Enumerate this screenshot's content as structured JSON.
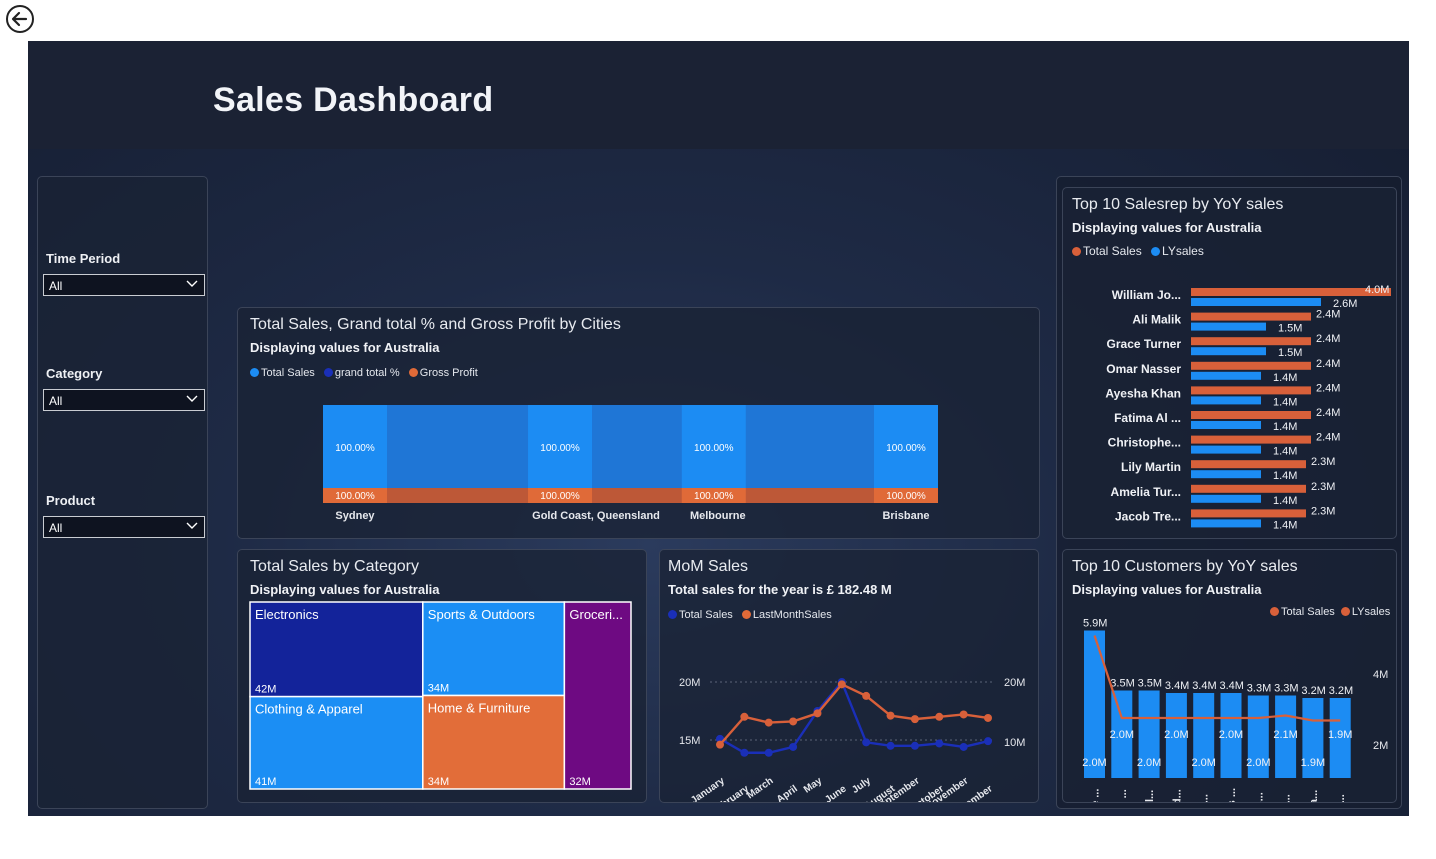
{
  "page": {
    "title": "Sales Dashboard"
  },
  "filters": [
    {
      "label": "Time Period",
      "value": "All"
    },
    {
      "label": "Category",
      "value": "All"
    },
    {
      "label": "Product",
      "value": "All"
    }
  ],
  "cities_chart": {
    "title": "Total Sales, Grand total % and Gross Profit by Cities",
    "subtitle": "Displaying values for Australia",
    "legend": [
      {
        "name": "Total Sales",
        "color": "#1c8cf3"
      },
      {
        "name": "grand total %",
        "color": "#1a2fb8"
      },
      {
        "name": "Gross Profit",
        "color": "#e06a38"
      }
    ]
  },
  "category_chart": {
    "title": "Total Sales by Category",
    "subtitle": "Displaying values for Australia"
  },
  "mom_chart": {
    "title": "MoM Sales",
    "subtitle": "Total sales for the year is £ 182.48 M",
    "legend": [
      {
        "name": "Total Sales",
        "color": "#1a2fb8"
      },
      {
        "name": "LastMonthSales",
        "color": "#e06a38"
      }
    ]
  },
  "salesrep_chart": {
    "title": "Top 10 Salesrep by YoY sales",
    "subtitle": "Displaying values for Australia",
    "legend": [
      {
        "name": "Total Sales",
        "color": "#d8603a"
      },
      {
        "name": "LYsales",
        "color": "#1c8cf3"
      }
    ]
  },
  "customers_chart": {
    "title": "Top 10 Customers by YoY sales",
    "subtitle": "Displaying values for Australia",
    "legend": [
      {
        "name": "Total Sales",
        "color": "#d8603a"
      },
      {
        "name": "LYsales",
        "color": "#d8603a"
      }
    ]
  },
  "chart_data": [
    {
      "id": "cities",
      "type": "bar",
      "categories": [
        "Sydney",
        "Gold Coast, Queensland",
        "Melbourne",
        "Brisbane"
      ],
      "series": [
        {
          "name": "Total Sales",
          "pct_labels": [
            "100.00%",
            "100.00%",
            "100.00%",
            "100.00%"
          ]
        },
        {
          "name": "Gross Profit",
          "pct_labels": [
            "100.00%",
            "100.00%",
            "100.00%",
            "100.00%"
          ]
        }
      ]
    },
    {
      "id": "category",
      "type": "treemap",
      "items": [
        {
          "name": "Electronics",
          "label": "42M",
          "value": 42,
          "color": "#13239a"
        },
        {
          "name": "Clothing & Apparel",
          "label": "41M",
          "value": 41,
          "color": "#1b8ef4"
        },
        {
          "name": "Sports & Outdoors",
          "label": "34M",
          "value": 34,
          "color": "#1b8ef4"
        },
        {
          "name": "Home & Furniture",
          "label": "34M",
          "value": 34,
          "color": "#e26d39"
        },
        {
          "name": "Groceri...",
          "label": "32M",
          "value": 32,
          "color": "#6e0a82"
        }
      ]
    },
    {
      "id": "mom",
      "type": "line",
      "x": [
        "January",
        "February",
        "March",
        "April",
        "May",
        "June",
        "July",
        "August",
        "September",
        "October",
        "November",
        "December"
      ],
      "left_ticks": [
        "20M",
        "15M"
      ],
      "right_ticks": [
        "20M",
        "10M"
      ],
      "series": [
        {
          "name": "Total Sales",
          "values": [
            15.1,
            13.9,
            13.9,
            14.4,
            17.5,
            20.0,
            14.8,
            14.5,
            14.5,
            14.7,
            14.4,
            14.9
          ]
        },
        {
          "name": "LastMonthSales",
          "values": [
            14.6,
            17.0,
            16.5,
            16.6,
            17.3,
            19.8,
            18.8,
            17.1,
            16.8,
            17.0,
            17.2,
            16.9
          ]
        }
      ]
    },
    {
      "id": "salesrep",
      "type": "bar",
      "orientation": "horizontal",
      "categories": [
        "William Jo...",
        "Ali Malik",
        "Grace Turner",
        "Omar Nasser",
        "Ayesha Khan",
        "Fatima Al ...",
        "Christophe...",
        "Lily Martin",
        "Amelia Tur...",
        "Jacob Tre..."
      ],
      "series": [
        {
          "name": "Total Sales",
          "values": [
            4.0,
            2.4,
            2.4,
            2.4,
            2.4,
            2.4,
            2.4,
            2.3,
            2.3,
            2.3
          ],
          "labels": [
            "4.0M",
            "2.4M",
            "2.4M",
            "2.4M",
            "2.4M",
            "2.4M",
            "2.4M",
            "2.3M",
            "2.3M",
            "2.3M"
          ]
        },
        {
          "name": "LYsales",
          "values": [
            2.6,
            1.5,
            1.5,
            1.4,
            1.4,
            1.4,
            1.4,
            1.4,
            1.4,
            1.4
          ],
          "labels": [
            "2.6M",
            "1.5M",
            "1.5M",
            "1.4M",
            "1.4M",
            "1.4M",
            "1.4M",
            "1.4M",
            "1.4M",
            "1.4M"
          ]
        }
      ]
    },
    {
      "id": "customers",
      "type": "bar",
      "categories": [
        "Grace ...",
        "Ethan ...",
        "Daniel...",
        "Khalid...",
        "Liam ...",
        "Lucas ...",
        "Jacks...",
        "Willia...",
        "Emma...",
        "Willia..."
      ],
      "y_ticks": [
        "4M",
        "2M"
      ],
      "series": [
        {
          "name": "Total Sales",
          "values": [
            5.9,
            3.5,
            3.5,
            3.4,
            3.4,
            3.4,
            3.3,
            3.3,
            3.2,
            3.2
          ],
          "labels": [
            "5.9M",
            "3.5M",
            "3.5M",
            "3.4M",
            "3.4M",
            "3.4M",
            "3.3M",
            "3.3M",
            "3.2M",
            "3.2M"
          ]
        },
        {
          "name": "LYsales",
          "values": [
            2.0,
            2.0,
            2.0,
            2.0,
            2.0,
            2.0,
            2.0,
            2.1,
            1.9,
            1.9
          ],
          "labels": [
            "2.0M",
            "2.0M",
            "2.0M",
            "2.0M",
            "2.0M",
            "2.0M",
            "2.0M",
            "2.1M",
            "1.9M",
            "1.9M"
          ]
        }
      ]
    }
  ]
}
